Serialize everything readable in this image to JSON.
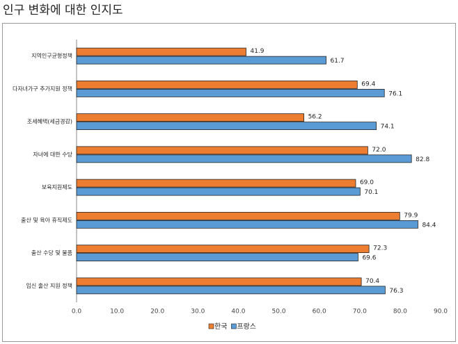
{
  "chart_data": {
    "type": "hbar",
    "title": "인구 변화에 대한 인지도",
    "categories": [
      "지역인구균형정책",
      "다자녀가구 추가지원 정책",
      "조세혜택(세금경감)",
      "자녀에 대한 수당",
      "보육지원제도",
      "출산 및 육아 휴직제도",
      "출산 수당 및 물품",
      "임신 출산 지원 정책"
    ],
    "series": [
      {
        "name": "한국",
        "color": "#ed7d31",
        "values": [
          41.9,
          69.4,
          56.2,
          72.0,
          69.0,
          79.9,
          72.3,
          70.4
        ],
        "value_labels": [
          "41.9",
          "69.4",
          "56.2",
          "72.0",
          "69.0",
          "79.9",
          "72.3",
          "70.4"
        ]
      },
      {
        "name": "프랑스",
        "color": "#5b9bd5",
        "values": [
          61.7,
          76.1,
          74.1,
          82.8,
          70.1,
          84.4,
          69.6,
          76.3
        ],
        "value_labels": [
          "61.7",
          "76.1",
          "74.1",
          "82.8",
          "70.1",
          "84.4",
          "69.6",
          "76.3"
        ]
      }
    ],
    "xlim": [
      0,
      90
    ],
    "xticks": [
      {
        "value": 0,
        "label": "0.0"
      },
      {
        "value": 10,
        "label": "10.0"
      },
      {
        "value": 20,
        "label": "20.0"
      },
      {
        "value": 30,
        "label": "30.0"
      },
      {
        "value": 40,
        "label": "40.0"
      },
      {
        "value": 50,
        "label": "50.0"
      },
      {
        "value": 60,
        "label": "60.0"
      },
      {
        "value": 70,
        "label": "70.0"
      },
      {
        "value": 80,
        "label": "80.0"
      },
      {
        "value": 90,
        "label": "90.0"
      }
    ],
    "legend": "bottom"
  }
}
